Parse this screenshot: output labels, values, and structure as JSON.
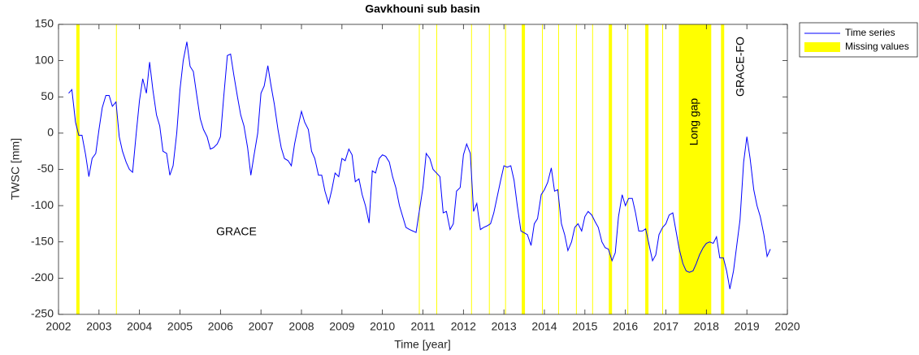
{
  "chart_data": {
    "type": "line",
    "title": "Gavkhouni sub basin",
    "xlabel": "Time [year]",
    "ylabel": "TWSC [mm]",
    "xlim": [
      2002,
      2020
    ],
    "xticks": [
      2002,
      2003,
      2004,
      2005,
      2006,
      2007,
      2008,
      2009,
      2010,
      2011,
      2012,
      2013,
      2014,
      2015,
      2016,
      2017,
      2018,
      2019,
      2020
    ],
    "ylim": [
      -250,
      150
    ],
    "yticks": [
      -250,
      -200,
      -150,
      -100,
      -50,
      0,
      50,
      100,
      150
    ],
    "grid": false,
    "legend": "outside-upper-right",
    "series": [
      {
        "name": "Time series",
        "color": "#0000ff",
        "x": [
          2002.25,
          2002.33,
          2002.42,
          2002.5,
          2002.58,
          2002.67,
          2002.75,
          2002.83,
          2002.92,
          2003,
          2003.08,
          2003.17,
          2003.25,
          2003.33,
          2003.42,
          2003.5,
          2003.58,
          2003.67,
          2003.75,
          2003.83,
          2003.92,
          2004,
          2004.08,
          2004.17,
          2004.25,
          2004.33,
          2004.42,
          2004.5,
          2004.58,
          2004.67,
          2004.75,
          2004.83,
          2004.92,
          2005,
          2005.08,
          2005.17,
          2005.25,
          2005.33,
          2005.42,
          2005.5,
          2005.58,
          2005.67,
          2005.75,
          2005.83,
          2005.92,
          2006,
          2006.08,
          2006.17,
          2006.25,
          2006.33,
          2006.42,
          2006.5,
          2006.58,
          2006.67,
          2006.75,
          2006.83,
          2006.92,
          2007,
          2007.08,
          2007.17,
          2007.25,
          2007.33,
          2007.42,
          2007.5,
          2007.58,
          2007.67,
          2007.75,
          2007.83,
          2007.92,
          2008,
          2008.08,
          2008.17,
          2008.25,
          2008.33,
          2008.42,
          2008.5,
          2008.58,
          2008.67,
          2008.75,
          2008.83,
          2008.92,
          2009,
          2009.08,
          2009.17,
          2009.25,
          2009.33,
          2009.42,
          2009.5,
          2009.58,
          2009.67,
          2009.75,
          2009.83,
          2009.92,
          2010,
          2010.08,
          2010.17,
          2010.25,
          2010.33,
          2010.42,
          2010.5,
          2010.58,
          2010.67,
          2010.75,
          2010.83,
          2011,
          2011.08,
          2011.17,
          2011.25,
          2011.42,
          2011.5,
          2011.58,
          2011.67,
          2011.75,
          2011.83,
          2011.92,
          2012,
          2012.08,
          2012.17,
          2012.25,
          2012.33,
          2012.42,
          2012.5,
          2012.58,
          2012.67,
          2012.75,
          2012.92,
          2013,
          2013.08,
          2013.17,
          2013.25,
          2013.33,
          2013.42,
          2013.58,
          2013.67,
          2013.75,
          2013.83,
          2013.92,
          2014,
          2014.08,
          2014.17,
          2014.25,
          2014.33,
          2014.42,
          2014.5,
          2014.58,
          2014.67,
          2014.75,
          2014.83,
          2014.92,
          2015,
          2015.08,
          2015.17,
          2015.25,
          2015.33,
          2015.42,
          2015.5,
          2015.58,
          2015.67,
          2015.75,
          2015.83,
          2015.92,
          2016,
          2016.08,
          2016.17,
          2016.25,
          2016.33,
          2016.42,
          2016.5,
          2016.67,
          2016.75,
          2016.83,
          2016.92,
          2017,
          2017.08,
          2017.17,
          2017.25,
          2017.33,
          2017.42,
          2017.5,
          2017.58,
          2017.67,
          2017.75,
          2017.83,
          2017.92,
          2018,
          2018.08,
          2018.17,
          2018.25,
          2018.33,
          2018.42,
          2018.5,
          2018.58,
          2018.67,
          2018.75,
          2018.83,
          2018.92,
          2019,
          2019.08,
          2019.17,
          2019.25,
          2019.33,
          2019.42,
          2019.5,
          2019.58
        ],
        "values": [
          55,
          60,
          15,
          -3,
          -3,
          -30,
          -60,
          -35,
          -28,
          5,
          35,
          52,
          52,
          37,
          43,
          -5,
          -25,
          -40,
          -50,
          -54,
          0,
          45,
          75,
          55,
          98,
          60,
          25,
          10,
          -25,
          -28,
          -58,
          -45,
          0,
          60,
          100,
          126,
          92,
          85,
          50,
          20,
          5,
          -5,
          -22,
          -20,
          -15,
          -5,
          50,
          107,
          109,
          80,
          50,
          25,
          10,
          -20,
          -58,
          -30,
          0,
          55,
          65,
          93,
          65,
          40,
          5,
          -20,
          -35,
          -38,
          -45,
          -15,
          10,
          30,
          15,
          5,
          -25,
          -35,
          -58,
          -58,
          -80,
          -97,
          -78,
          -55,
          -60,
          -35,
          -38,
          -22,
          -30,
          -67,
          -63,
          -85,
          -100,
          -124,
          -52,
          -55,
          -35,
          -30,
          -32,
          -40,
          -60,
          -75,
          -100,
          -115,
          -130,
          -133,
          -135,
          -137,
          -75,
          -28,
          -35,
          -50,
          -60,
          -110,
          -108,
          -133,
          -125,
          -80,
          -75,
          -30,
          -15,
          -28,
          -108,
          -97,
          -133,
          -130,
          -128,
          -125,
          -110,
          -65,
          -45,
          -47,
          -45,
          -65,
          -100,
          -135,
          -140,
          -155,
          -125,
          -118,
          -85,
          -78,
          -68,
          -48,
          -80,
          -78,
          -125,
          -140,
          -162,
          -150,
          -130,
          -125,
          -135,
          -115,
          -108,
          -113,
          -122,
          -130,
          -150,
          -158,
          -160,
          -176,
          -165,
          -115,
          -85,
          -100,
          -90,
          -90,
          -110,
          -135,
          -135,
          -132,
          -176,
          -168,
          -140,
          -130,
          -125,
          -113,
          -110,
          -135,
          -160,
          -180,
          -190,
          -192,
          -190,
          -180,
          -168,
          -158,
          -152,
          -150,
          -152,
          -143,
          -172,
          -172,
          -190,
          -215,
          -190,
          -155,
          -120,
          -40,
          -5,
          -35,
          -78,
          -100,
          -115,
          -140,
          -170,
          -160
        ]
      }
    ],
    "missing": {
      "name": "Missing values",
      "color": "#ffff00",
      "periods": [
        [
          2002.44,
          2002.52
        ],
        [
          2003.42,
          2003.44
        ],
        [
          2010.9,
          2010.92
        ],
        [
          2011.33,
          2011.35
        ],
        [
          2012.19,
          2012.21
        ],
        [
          2012.63,
          2012.65
        ],
        [
          2013.03,
          2013.05
        ],
        [
          2013.44,
          2013.52
        ],
        [
          2013.94,
          2013.96
        ],
        [
          2014.34,
          2014.36
        ],
        [
          2014.78,
          2014.8
        ],
        [
          2015.18,
          2015.2
        ],
        [
          2015.59,
          2015.67
        ],
        [
          2016.05,
          2016.07
        ],
        [
          2016.49,
          2016.57
        ],
        [
          2016.91,
          2016.93
        ],
        [
          2017.32,
          2018.12
        ],
        [
          2018.36,
          2018.44
        ]
      ]
    },
    "annotations": [
      "GRACE",
      "Long gap",
      "GRACE-FO"
    ]
  }
}
